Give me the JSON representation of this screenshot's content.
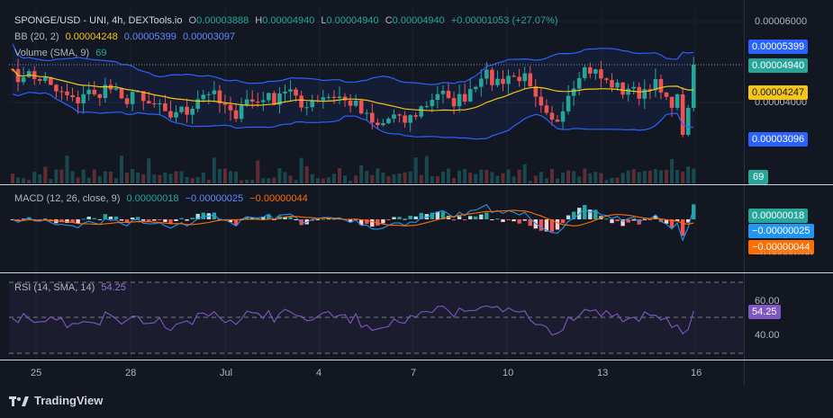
{
  "header": {
    "symbol": "SPONGE/USD - UNI, 4h, DEXTools.io",
    "o_label": "O",
    "o_value": "0.00003888",
    "h_label": "H",
    "h_value": "0.00004940",
    "l_label": "L",
    "l_value": "0.00004940",
    "c_label": "C",
    "c_value": "0.00004940",
    "change": "+0.00001053 (+27.07%)"
  },
  "bb_legend": {
    "label": "BB (20, 2)",
    "basis": "0.00004248",
    "upper": "0.00005399",
    "lower": "0.00003097"
  },
  "volume_legend": {
    "label": "Volume (SMA, 9)",
    "value": "69"
  },
  "macd_legend": {
    "label": "MACD (12, 26, close, 9)",
    "hist": "0.00000018",
    "macd": "−0.00000025",
    "signal": "−0.00000044"
  },
  "rsi_legend": {
    "label": "RSI (14, SMA, 14)",
    "value": "54.25"
  },
  "price_axis": {
    "ticks": [
      "0.00006000",
      "0.00004000"
    ]
  },
  "price_tags": {
    "bb_upper": "0.00005399",
    "close": "0.00004940",
    "bb_basis": "0.00004247",
    "bb_lower": "0.00003096",
    "volume": "69"
  },
  "macd_axis": {
    "tick_partial": "−0.00000200"
  },
  "macd_tags": {
    "hist": "0.00000018",
    "macd": "−0.00000025",
    "signal": "−0.00000044"
  },
  "rsi_axis": {
    "ticks": [
      "60.00",
      "40.00"
    ]
  },
  "rsi_tag": "54.25",
  "time_axis": {
    "labels": [
      "25",
      "28",
      "Jul",
      "4",
      "7",
      "10",
      "13",
      "16"
    ]
  },
  "colors": {
    "up": "#26a69a",
    "down": "#ef5350",
    "bb": "#2962ff",
    "basis": "#f5c518",
    "macd": "#2196f3",
    "signal": "#ff6d00",
    "rsi": "#7e57c2"
  },
  "branding": {
    "name": "TradingView"
  },
  "chart_data": {
    "type": "candlestick",
    "timeframe": "4h",
    "x_labels": [
      "25",
      "28",
      "Jul",
      "4",
      "7",
      "10",
      "13",
      "16"
    ],
    "last_candle": {
      "open": 3.888e-05,
      "high": 4.94e-05,
      "low": 4.94e-05,
      "close": 4.94e-05
    },
    "bollinger": {
      "upper": 5.399e-05,
      "basis": 4.248e-05,
      "lower": 3.097e-05
    },
    "volume_sma": 69,
    "macd": {
      "histogram": 1.8e-07,
      "macd": -2.5e-07,
      "signal": -4.4e-07
    },
    "rsi": {
      "value": 54.25,
      "levels": [
        70,
        50,
        30
      ]
    }
  }
}
